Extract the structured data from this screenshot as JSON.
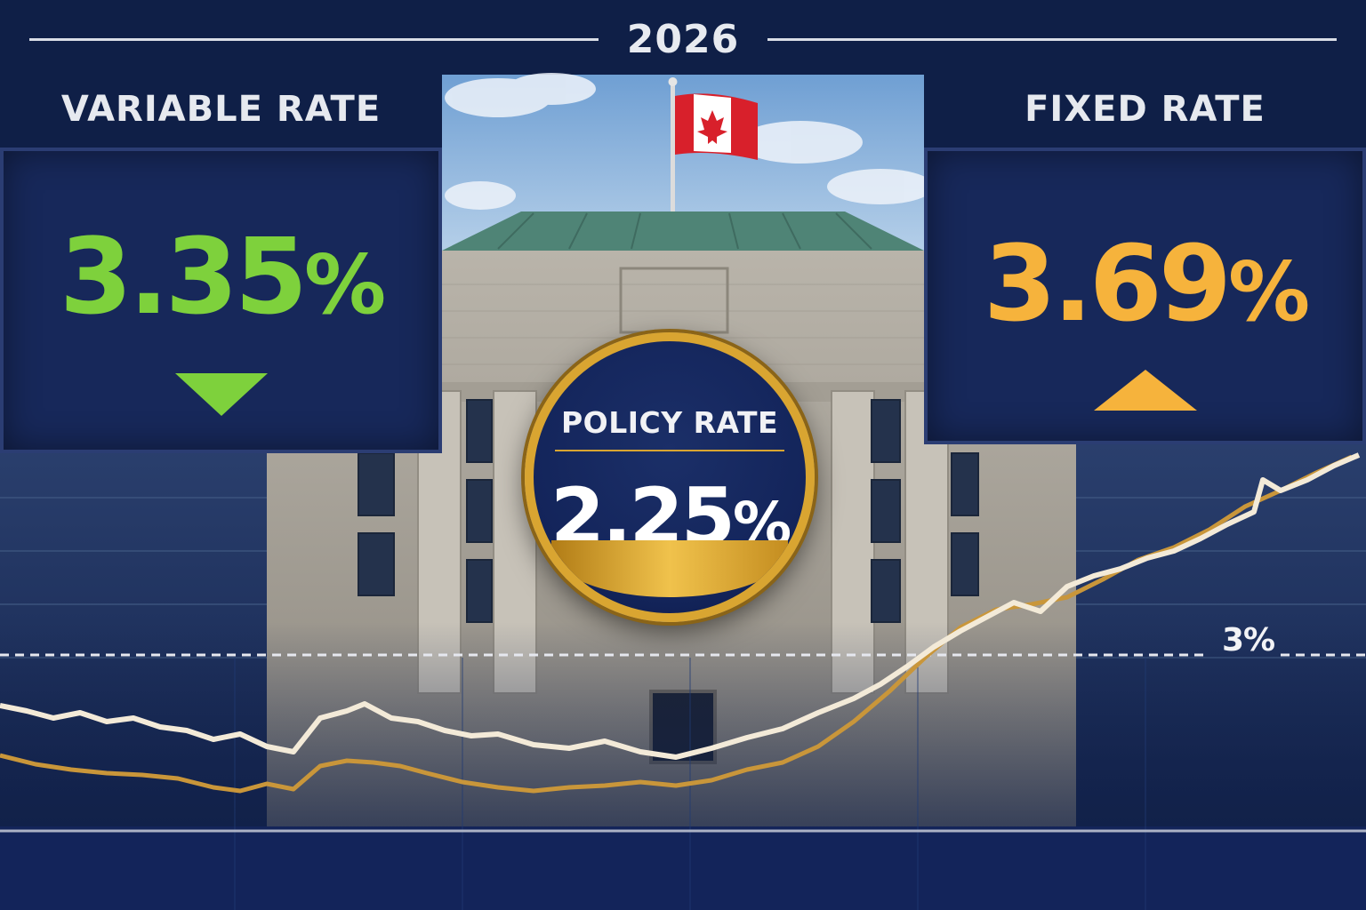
{
  "header": {
    "year": "2026"
  },
  "variable": {
    "label": "VARIABLE RATE",
    "value": "3.35",
    "unit": "%",
    "direction": "down",
    "color": "#7ed13c"
  },
  "fixed": {
    "label": "FIXED RATE",
    "value": "3.69",
    "unit": "%",
    "direction": "up",
    "color": "#f6b33c"
  },
  "policy": {
    "label": "POLICY RATE",
    "value": "2.25",
    "unit": "%",
    "accent": "#d9a531"
  },
  "chart": {
    "level_label": "3%"
  },
  "colors": {
    "background": "#0f1f47",
    "panel": "#17285a",
    "gold_line": "#c9963a",
    "white_line": "#f3ead8"
  },
  "icons": {
    "flag": "canada-flag-icon",
    "down": "down-triangle-icon",
    "up": "up-triangle-icon"
  }
}
